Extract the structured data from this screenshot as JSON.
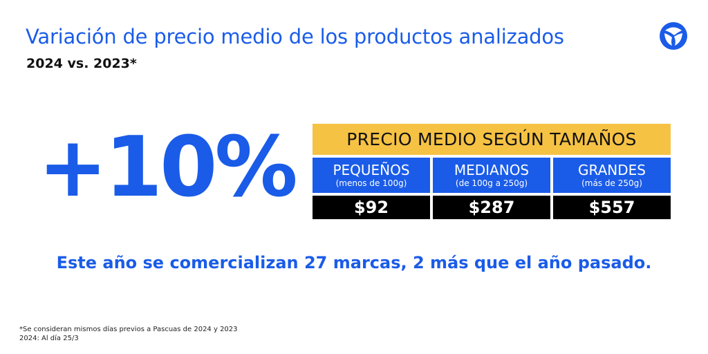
{
  "title": "Variación de precio medio de los productos analizados",
  "subtitle": "2024 vs. 2023*",
  "logo": {
    "icon": "brand-swirl-logo",
    "color": "#1a5ce8"
  },
  "big_stat": "+10%",
  "table": {
    "header": "PRECIO MEDIO SEGÚN TAMAÑOS",
    "columns": [
      {
        "name": "PEQUEÑOS",
        "range": "(menos de 100g)",
        "price": "$92"
      },
      {
        "name": "MEDIANOS",
        "range": "(de 100g a 250g)",
        "price": "$287"
      },
      {
        "name": "GRANDES",
        "range": "(más de 250g)",
        "price": "$557"
      }
    ]
  },
  "statement": "Este año se comercializan 27 marcas, 2 más que el año pasado.",
  "footnotes": [
    "*Se consideran mismos días previos a Pascuas de 2024 y 2023",
    "2024: Al día 25/3"
  ],
  "colors": {
    "accent": "#1a5ce8",
    "header_bg": "#f6c244",
    "price_bg": "#000000"
  }
}
